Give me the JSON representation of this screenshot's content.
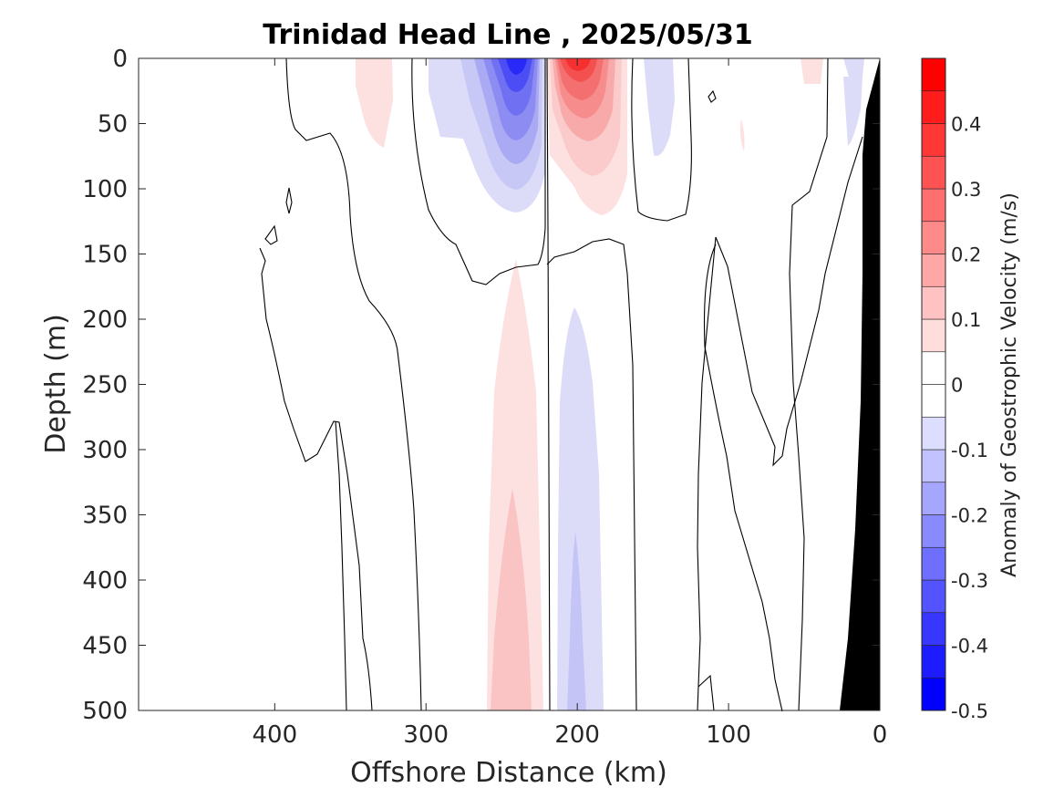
{
  "chart_data": {
    "type": "heatmap",
    "title": "Trinidad Head Line , 2025/05/31",
    "xlabel": "Offshore Distance (km)",
    "ylabel": "Depth (m)",
    "colorbar_label": "Anomaly of Geostrophic Velocity (m/s)",
    "xlim": [
      490,
      0
    ],
    "ylim": [
      0,
      500
    ],
    "x_ticks": [
      400,
      300,
      200,
      100,
      0
    ],
    "x_tick_labels": [
      "400",
      "300",
      "200",
      "100",
      "0"
    ],
    "y_ticks": [
      0,
      50,
      100,
      150,
      200,
      250,
      300,
      350,
      400,
      450,
      500
    ],
    "y_tick_labels": [
      "0",
      "50",
      "100",
      "150",
      "200",
      "250",
      "300",
      "350",
      "400",
      "450",
      "500"
    ],
    "colorbar_range": [
      -0.5,
      0.5
    ],
    "colorbar_ticks": [
      0.4,
      0.3,
      0.2,
      0.1,
      0,
      -0.1,
      -0.2,
      -0.3,
      -0.4,
      -0.5
    ],
    "colorbar_tick_labels": [
      "0.4",
      "0.3",
      "0.2",
      "0.1",
      "0",
      "-0.1",
      "-0.2",
      "-0.3",
      "-0.4",
      "-0.5"
    ],
    "contour_interval": 0.05,
    "colormap": "blue-white-red (diverging)",
    "colors": {
      "positive": "#ff0000",
      "negative": "#0000ff",
      "zero": "#ffffff",
      "bathymetry": "#000000"
    },
    "features": [
      {
        "name": "surface-negative-core",
        "center_km": 238,
        "depth_top_m": 0,
        "depth_bottom_m": 120,
        "peak_velocity": -0.35
      },
      {
        "name": "surface-positive-core",
        "center_km": 200,
        "depth_top_m": 0,
        "depth_bottom_m": 105,
        "peak_velocity": 0.35
      },
      {
        "name": "deep-positive-lobe",
        "center_km": 240,
        "depth_top_m": 228,
        "depth_bottom_m": 500,
        "peak_velocity": 0.1
      },
      {
        "name": "deep-negative-lobe",
        "center_km": 200,
        "depth_top_m": 226,
        "depth_bottom_m": 500,
        "peak_velocity": -0.15
      },
      {
        "name": "weak-positive-patch-west",
        "center_km": 335,
        "depth_top_m": 0,
        "depth_bottom_m": 68,
        "peak_velocity": 0.05
      },
      {
        "name": "weak-negative-patch-east",
        "center_km": 150,
        "depth_top_m": 0,
        "depth_bottom_m": 75,
        "peak_velocity": -0.05
      }
    ]
  }
}
